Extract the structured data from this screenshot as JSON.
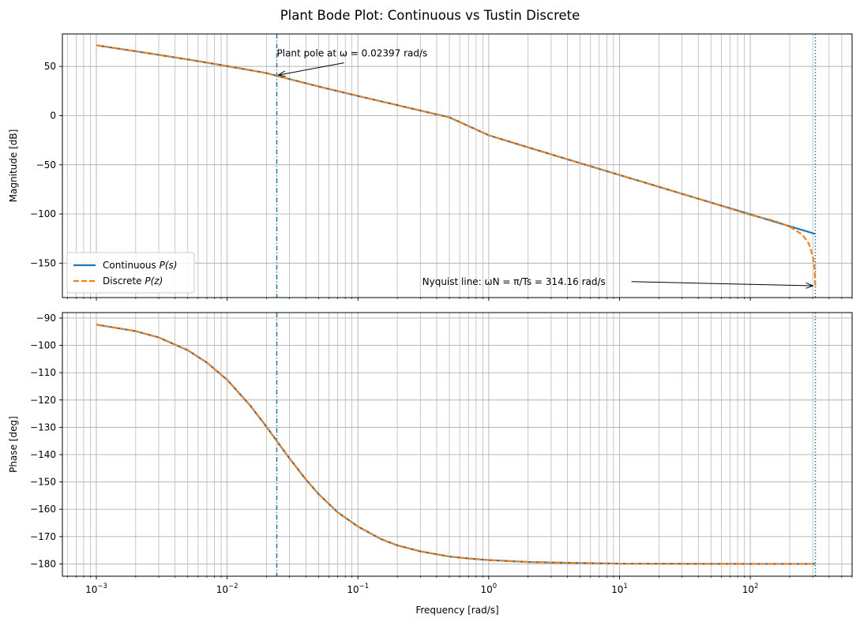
{
  "figure": {
    "title": "Plant Bode Plot: Continuous vs Tustin Discrete"
  },
  "colors": {
    "continuous": "#1f77b4",
    "discrete": "#ff7f0e",
    "pole_line": "#1f77b4",
    "nyquist_line": "#1f77b4",
    "grid": "#b0b0b0"
  },
  "chart_data": [
    {
      "type": "line",
      "panel": "magnitude",
      "xlabel": "",
      "ylabel": "Magnitude [dB]",
      "xscale": "log",
      "xlim": [
        0.00055,
        600
      ],
      "ylim": [
        -185,
        83
      ],
      "yticks": [
        50,
        0,
        -50,
        -100,
        -150
      ],
      "ytick_labels": [
        "50",
        "0",
        "−50",
        "−100",
        "−150"
      ],
      "grid": true,
      "legend_position": "lower-left",
      "series": [
        {
          "name": "Continuous P(s)",
          "legend_label": "Continuous",
          "legend_math": "P(s)",
          "style": "solid",
          "x": [
            0.001,
            0.002,
            0.005,
            0.01,
            0.02,
            0.02397,
            0.05,
            0.1,
            0.2,
            0.5,
            1,
            2,
            5,
            10,
            20,
            50,
            100,
            200,
            314.16
          ],
          "y": [
            71.5,
            65.4,
            57.1,
            50.3,
            43.2,
            40.4,
            29.6,
            20.0,
            10.6,
            -1.8,
            -20.0,
            -32.3,
            -48.3,
            -60.4,
            -72.4,
            -88.4,
            -100.4,
            -112.5,
            -120.3
          ]
        },
        {
          "name": "Discrete P(z)",
          "legend_label": "Discrete",
          "legend_math": "P(z)",
          "style": "dashed",
          "x": [
            0.001,
            0.002,
            0.005,
            0.01,
            0.02,
            0.02397,
            0.05,
            0.1,
            0.2,
            0.5,
            1,
            2,
            5,
            10,
            20,
            50,
            100,
            150,
            200,
            250,
            280,
            300,
            310,
            314.16
          ],
          "y": [
            71.5,
            65.4,
            57.1,
            50.3,
            43.2,
            40.4,
            29.6,
            20.0,
            10.6,
            -1.8,
            -20.0,
            -32.3,
            -48.3,
            -60.4,
            -72.4,
            -88.4,
            -101.0,
            -106.6,
            -112.8,
            -121.1,
            -130.0,
            -142.3,
            -155.0,
            -175.0
          ]
        }
      ],
      "vlines": [
        {
          "x": 0.02397,
          "style": "dashdot"
        },
        {
          "x": 314.16,
          "style": "dotted"
        }
      ],
      "annotations": [
        {
          "text": "Plant pole at ω = 0.02397 rad/s",
          "text_x": 0.02397,
          "text_y": 60,
          "target_x": 0.02397,
          "target_y": 40.4
        },
        {
          "text": "Nyquist line: ωN = π/Ts = 314.16 rad/s",
          "text_x": 0.31,
          "text_y": -172,
          "target_x": 314.16,
          "target_y": -173
        }
      ]
    },
    {
      "type": "line",
      "panel": "phase",
      "xlabel": "Frequency [rad/s]",
      "ylabel": "Phase [deg]",
      "xscale": "log",
      "xlim": [
        0.00055,
        600
      ],
      "ylim": [
        -184.5,
        -88
      ],
      "yticks": [
        -90,
        -100,
        -110,
        -120,
        -130,
        -140,
        -150,
        -160,
        -170,
        -180
      ],
      "ytick_labels": [
        "−90",
        "−100",
        "−110",
        "−120",
        "−130",
        "−140",
        "−150",
        "−160",
        "−170",
        "−180"
      ],
      "xticks": [
        0.001,
        0.01,
        0.1,
        1,
        10,
        100
      ],
      "xtick_base": "10",
      "xtick_exponents": [
        "−3",
        "−2",
        "−1",
        "0",
        "1",
        "2"
      ],
      "grid": true,
      "series": [
        {
          "name": "Continuous P(s)",
          "style": "solid",
          "x": [
            0.001,
            0.002,
            0.003,
            0.005,
            0.007,
            0.01,
            0.015,
            0.02,
            0.02397,
            0.03,
            0.04,
            0.05,
            0.07,
            0.1,
            0.15,
            0.2,
            0.3,
            0.5,
            0.7,
            1,
            2,
            5,
            10,
            100,
            314.16
          ],
          "y": [
            -92.4,
            -94.8,
            -97.1,
            -101.8,
            -106.3,
            -112.6,
            -122.0,
            -129.8,
            -135.0,
            -141.4,
            -149.1,
            -154.4,
            -161.1,
            -166.3,
            -170.9,
            -173.2,
            -175.4,
            -177.3,
            -178.0,
            -178.6,
            -179.3,
            -179.7,
            -179.9,
            -180.0,
            -180.0
          ]
        },
        {
          "name": "Discrete P(z)",
          "style": "dashed",
          "x": [
            0.001,
            0.002,
            0.003,
            0.005,
            0.007,
            0.01,
            0.015,
            0.02,
            0.02397,
            0.03,
            0.04,
            0.05,
            0.07,
            0.1,
            0.15,
            0.2,
            0.3,
            0.5,
            0.7,
            1,
            2,
            5,
            10,
            100,
            314.16
          ],
          "y": [
            -92.4,
            -94.8,
            -97.1,
            -101.8,
            -106.3,
            -112.6,
            -122.0,
            -129.8,
            -135.0,
            -141.4,
            -149.1,
            -154.4,
            -161.1,
            -166.3,
            -170.9,
            -173.2,
            -175.4,
            -177.3,
            -178.0,
            -178.6,
            -179.3,
            -179.7,
            -179.9,
            -180.0,
            -180.0
          ]
        }
      ],
      "vlines": [
        {
          "x": 0.02397,
          "style": "dashdot"
        },
        {
          "x": 314.16,
          "style": "dotted"
        }
      ]
    }
  ]
}
